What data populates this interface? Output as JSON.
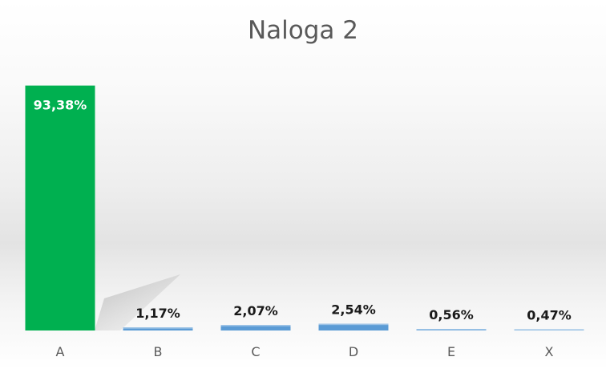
{
  "chart_data": {
    "type": "bar",
    "title": "Naloga 2",
    "xlabel": "",
    "ylabel": "",
    "categories": [
      "A",
      "B",
      "C",
      "D",
      "E",
      "X"
    ],
    "values": [
      93.38,
      1.17,
      2.07,
      2.54,
      0.56,
      0.47
    ],
    "value_labels": [
      "93,38%",
      "1,17%",
      "2,07%",
      "2,54%",
      "0,56%",
      "0,47%"
    ],
    "ylim": [
      0,
      100
    ],
    "grid": false,
    "legend": "none",
    "highlight_index": 0,
    "colors": {
      "highlight": "#00b050",
      "bar": "#5b9bd5",
      "bar_top": "#9dc3e6",
      "title": "#595959",
      "tick": "#595959",
      "label": "#1a1a1a",
      "label_inside": "#ffffff"
    }
  }
}
